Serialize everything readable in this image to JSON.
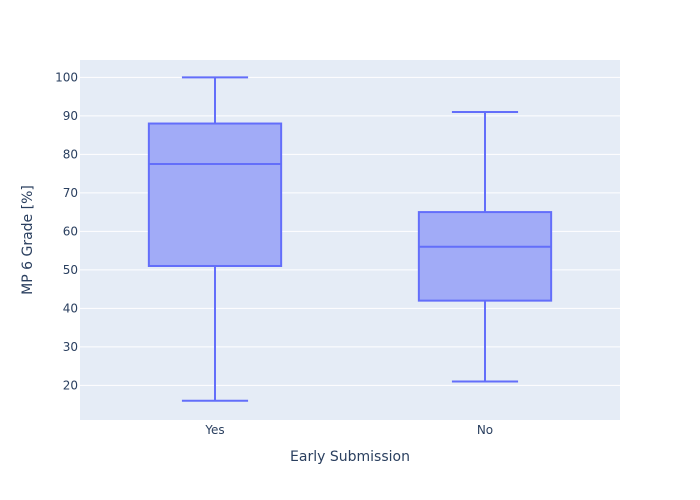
{
  "chart_data": {
    "type": "box",
    "title": "",
    "xlabel": "Early Submission",
    "ylabel": "MP 6 Grade [%]",
    "categories": [
      "Yes",
      "No"
    ],
    "boxes": [
      {
        "category": "Yes",
        "min": 16,
        "q1": 51,
        "median": 77.5,
        "q3": 88,
        "max": 100
      },
      {
        "category": "No",
        "min": 21,
        "q1": 42,
        "median": 56,
        "q3": 65,
        "max": 91
      }
    ],
    "yticks": [
      20,
      30,
      40,
      50,
      60,
      70,
      80,
      90,
      100
    ],
    "ylim": [
      11,
      104.5
    ],
    "grid": true,
    "legend": "none",
    "colors": {
      "plot_bg": "#e5ecf6",
      "grid": "#ffffff",
      "box_fill": "#a1abf7",
      "box_line": "#636efa",
      "text": "#2a3f5f"
    }
  }
}
